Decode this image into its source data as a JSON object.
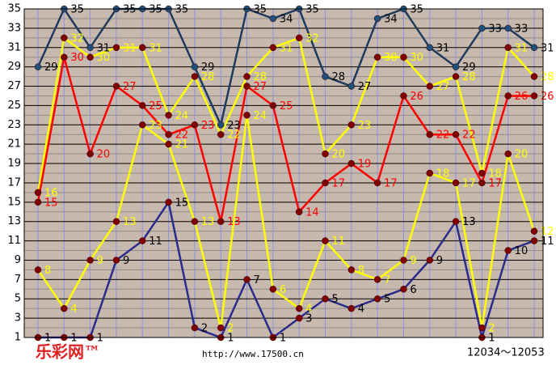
{
  "chart_data": {
    "type": "line",
    "categories": [
      null,
      null,
      null,
      null,
      null,
      null,
      null,
      null,
      null,
      null,
      null,
      null,
      null,
      null,
      null,
      null,
      null,
      null,
      null,
      null
    ],
    "series": [
      {
        "color": "#1f3b5c",
        "marker_color": "#1f4f7a",
        "label_color": "#000000",
        "values": [
          29,
          35,
          31,
          35,
          35,
          35,
          29,
          23,
          35,
          34,
          35,
          28,
          27,
          34,
          35,
          31,
          29,
          33,
          33,
          31
        ]
      },
      {
        "color": "#ffff00",
        "marker_color": "#800000",
        "label_color": "#ffff00",
        "values": [
          16,
          32,
          30,
          31,
          31,
          24,
          28,
          22,
          28,
          31,
          32,
          20,
          23,
          30,
          30,
          27,
          28,
          18,
          31,
          28
        ]
      },
      {
        "color": "#ff0000",
        "marker_color": "#800000",
        "label_color": "#ff0000",
        "values": [
          15,
          30,
          20,
          27,
          25,
          22,
          23,
          13,
          27,
          25,
          14,
          17,
          19,
          17,
          26,
          22,
          22,
          17,
          26,
          26
        ]
      },
      {
        "color": "#ffff00",
        "marker_color": "#800000",
        "label_color": "#ffff00",
        "values": [
          8,
          4,
          9,
          13,
          23,
          21,
          13,
          2,
          24,
          6,
          4,
          11,
          8,
          7,
          9,
          18,
          17,
          2,
          20,
          12
        ]
      },
      {
        "color": "#2b2b8c",
        "marker_color": "#800000",
        "label_color": "#000000",
        "values": [
          1,
          1,
          1,
          9,
          11,
          15,
          2,
          1,
          7,
          1,
          3,
          5,
          4,
          5,
          6,
          9,
          13,
          1,
          10,
          11
        ]
      }
    ],
    "ylim": [
      1,
      35
    ],
    "yticks": [
      1,
      3,
      5,
      7,
      9,
      11,
      13,
      15,
      17,
      19,
      21,
      23,
      25,
      27,
      29,
      31,
      33,
      35
    ],
    "grid": true,
    "background": "#c8b9ae",
    "annotations": [
      "乐彩网™",
      "http://www.17500.cn",
      "12034～12053"
    ]
  }
}
